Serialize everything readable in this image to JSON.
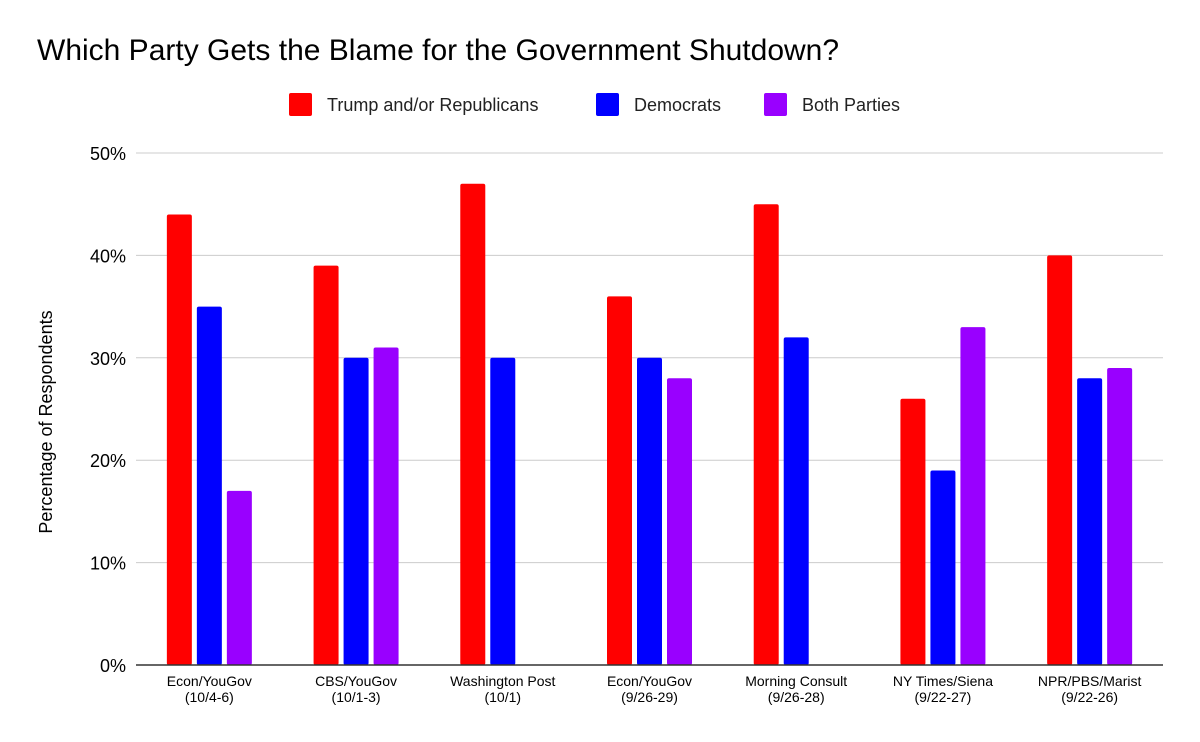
{
  "chart_data": {
    "type": "bar",
    "title": "Which Party Gets the Blame for the Government Shutdown?",
    "xlabel": "",
    "ylabel": "Percentage of Respondents",
    "ylim": [
      0,
      50
    ],
    "yticks": [
      0,
      10,
      20,
      30,
      40,
      50
    ],
    "ytick_labels": [
      "0%",
      "10%",
      "20%",
      "30%",
      "40%",
      "50%"
    ],
    "grid": true,
    "legend_position": "top-center",
    "categories": [
      [
        "Econ/YouGov",
        "(10/4-6)"
      ],
      [
        "CBS/YouGov",
        "(10/1-3)"
      ],
      [
        "Washington Post",
        "(10/1)"
      ],
      [
        "Econ/YouGov",
        "(9/26-29)"
      ],
      [
        "Morning Consult",
        "(9/26-28)"
      ],
      [
        "NY Times/Siena",
        "(9/22-27)"
      ],
      [
        "NPR/PBS/Marist",
        "(9/22-26)"
      ]
    ],
    "series": [
      {
        "name": "Trump and/or Republicans",
        "color": "#ff0000",
        "values": [
          44,
          39,
          47,
          36,
          45,
          26,
          40
        ]
      },
      {
        "name": "Democrats",
        "color": "#0000ff",
        "values": [
          35,
          30,
          30,
          30,
          32,
          19,
          28
        ]
      },
      {
        "name": "Both Parties",
        "color": "#9900ff",
        "values": [
          17,
          31,
          null,
          28,
          null,
          33,
          29
        ]
      }
    ]
  }
}
